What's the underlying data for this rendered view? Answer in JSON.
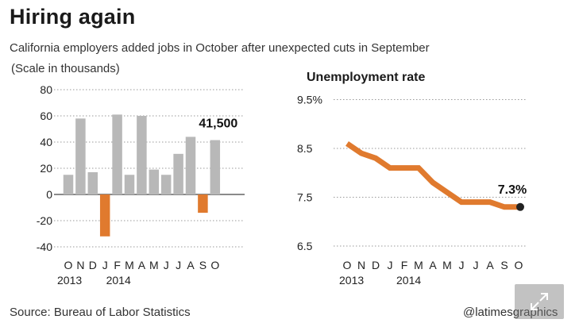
{
  "header": {
    "title": "Hiring again",
    "subtitle": "California employers added jobs in October after unexpected cuts in September"
  },
  "footer": {
    "source": "Source: Bureau of Labor Statistics",
    "credit": "@latimesgraphics"
  },
  "colors": {
    "positive_bar": "#b8b8b8",
    "negative_bar": "#e07a2e",
    "line": "#e07a2e",
    "last_point": "#222222",
    "grid": "#999999"
  },
  "chart_data": [
    {
      "type": "bar",
      "note": "(Scale in thousands)",
      "categories": [
        "O",
        "N",
        "D",
        "J",
        "F",
        "M",
        "A",
        "M",
        "J",
        "J",
        "A",
        "S",
        "O"
      ],
      "year_labels": [
        {
          "label": "2013",
          "category_index": 0
        },
        {
          "label": "2014",
          "category_index": 4
        }
      ],
      "values": [
        15,
        58,
        17,
        -32,
        61,
        15,
        60,
        19,
        15,
        31,
        44,
        -14,
        41.5
      ],
      "ylim": [
        -40,
        80
      ],
      "yticks": [
        -40,
        -20,
        0,
        20,
        40,
        60,
        80
      ],
      "ytick_labels": [
        "-40",
        "-20",
        "0",
        "20",
        "40",
        "60",
        "80"
      ],
      "grid": "dotted horizontal",
      "callout": {
        "text": "41,500",
        "category_index": 12
      }
    },
    {
      "type": "line",
      "title": "Unemployment rate",
      "categories": [
        "O",
        "N",
        "D",
        "J",
        "F",
        "M",
        "A",
        "M",
        "J",
        "J",
        "A",
        "S",
        "O"
      ],
      "year_labels": [
        {
          "label": "2013",
          "category_index": 0
        },
        {
          "label": "2014",
          "category_index": 4
        }
      ],
      "values": [
        8.6,
        8.4,
        8.3,
        8.1,
        8.1,
        8.1,
        7.8,
        7.6,
        7.4,
        7.4,
        7.4,
        7.3,
        7.3
      ],
      "ylim": [
        6.5,
        9.5
      ],
      "yticks": [
        6.5,
        7.5,
        8.5,
        9.5
      ],
      "ytick_labels": [
        "6.5",
        "7.5",
        "8.5",
        "9.5%"
      ],
      "grid": "dotted horizontal",
      "callout": {
        "text": "7.3%",
        "category_index": 12
      }
    }
  ]
}
